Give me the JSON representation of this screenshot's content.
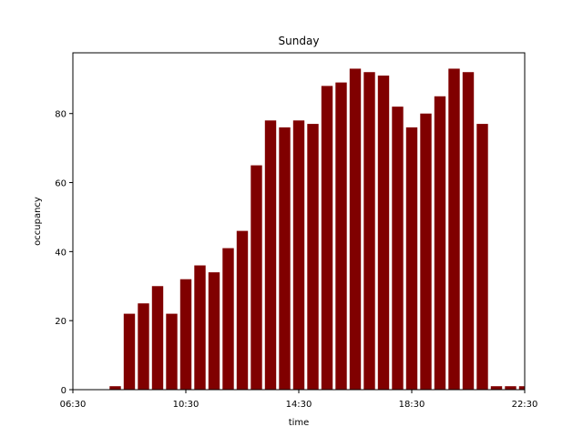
{
  "chart_data": {
    "type": "bar",
    "title": "Sunday",
    "xlabel": "time",
    "ylabel": "occupancy",
    "x_tick_labels": [
      "06:30",
      "10:30",
      "14:30",
      "18:30",
      "22:30"
    ],
    "x_tick_hours": [
      6.5,
      10.5,
      14.5,
      18.5,
      22.5
    ],
    "y_ticks": [
      0,
      20,
      40,
      60,
      80
    ],
    "xlim": [
      "06:30",
      "22:30"
    ],
    "ylim": [
      0,
      97.6
    ],
    "grid": false,
    "bar_color": "#800000",
    "categories": [
      "06:30",
      "07:00",
      "07:30",
      "08:00",
      "08:30",
      "09:00",
      "09:30",
      "10:00",
      "10:30",
      "11:00",
      "11:30",
      "12:00",
      "12:30",
      "13:00",
      "13:30",
      "14:00",
      "14:30",
      "15:00",
      "15:30",
      "16:00",
      "16:30",
      "17:00",
      "17:30",
      "18:00",
      "18:30",
      "19:00",
      "19:30",
      "20:00",
      "20:30",
      "21:00",
      "21:30",
      "22:00",
      "22:30"
    ],
    "values": [
      0,
      0,
      0,
      1,
      22,
      25,
      30,
      22,
      32,
      36,
      34,
      41,
      46,
      65,
      78,
      76,
      78,
      77,
      88,
      89,
      93,
      92,
      91,
      82,
      76,
      80,
      85,
      93,
      92,
      77,
      1,
      1,
      1
    ]
  }
}
